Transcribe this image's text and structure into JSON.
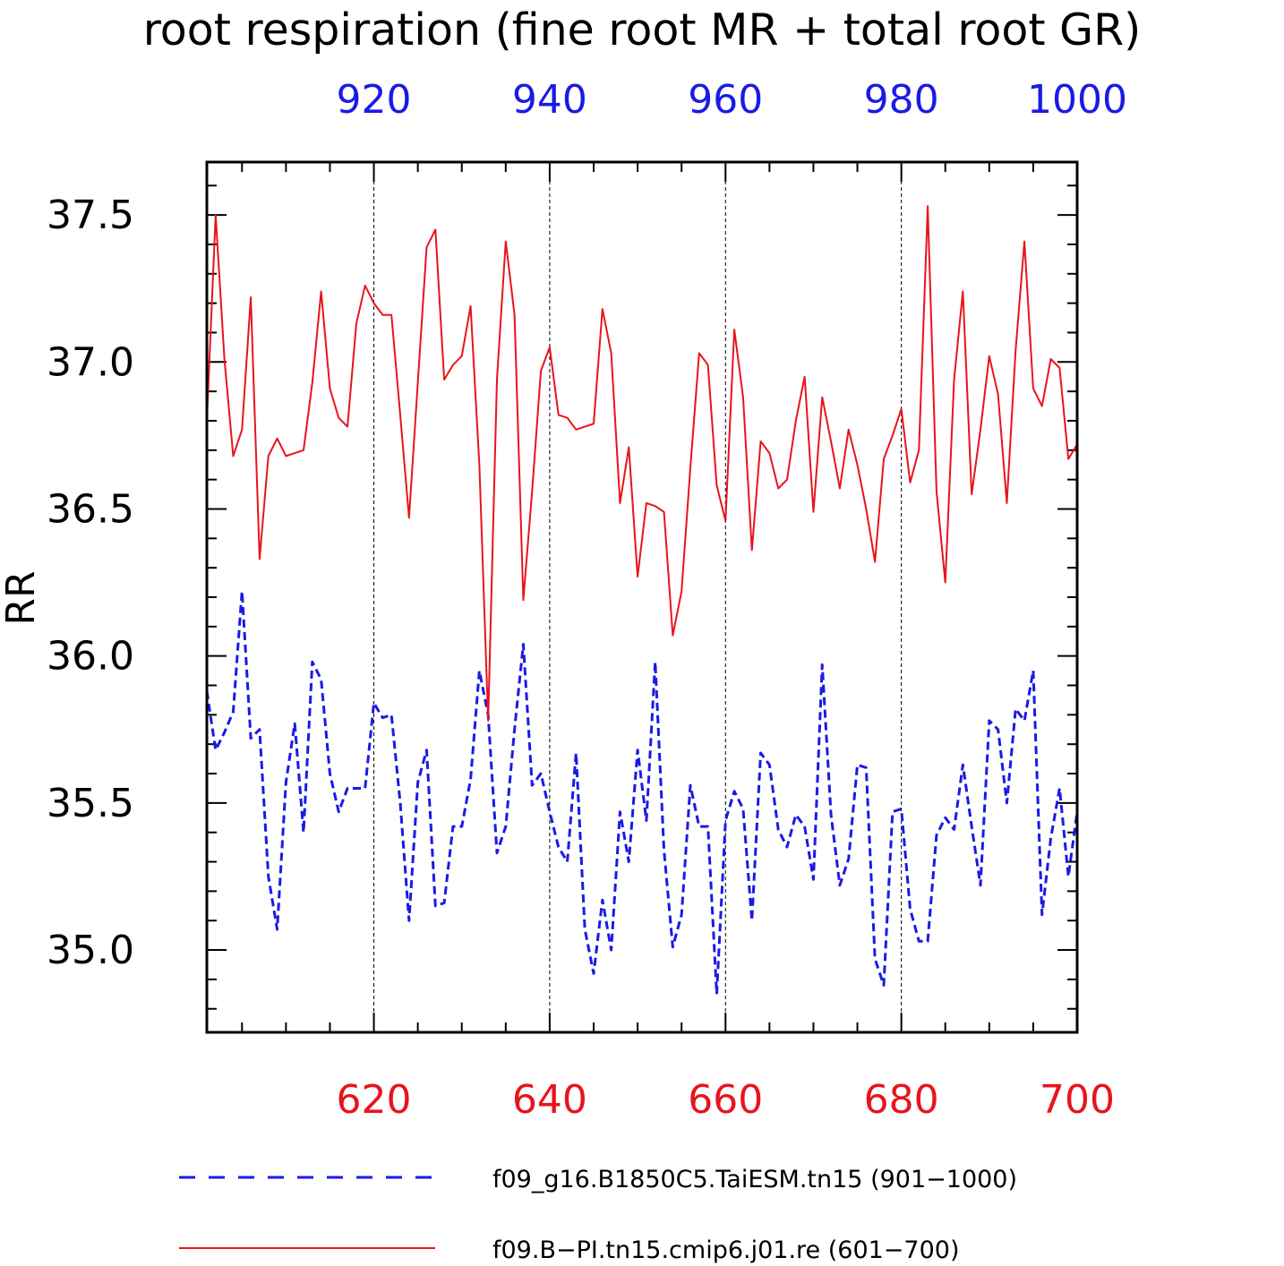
{
  "chart_data": {
    "type": "line",
    "title": "root respiration (fine root MR + total root GR)",
    "ylabel": "RR",
    "ylim": [
      34.72,
      37.68
    ],
    "yticks": [
      "35.0",
      "35.5",
      "36.0",
      "36.5",
      "37.0",
      "37.5"
    ],
    "x_bottom": {
      "range": [
        601,
        700
      ],
      "ticks": [
        "620",
        "640",
        "660",
        "680",
        "700"
      ],
      "color": "#e8141c"
    },
    "x_top": {
      "range": [
        901,
        1000
      ],
      "ticks": [
        "920",
        "940",
        "960",
        "980",
        "1000"
      ],
      "color": "#1a1ae6"
    },
    "grid": "vertical dashed lines at major x ticks",
    "series": [
      {
        "name": "f09_g16.B1850C5.TaiESM.tn15 (901−1000)",
        "axis": "top",
        "style": "dashed",
        "color": "#1a1ae6",
        "x_start": 901,
        "values": [
          35.88,
          35.68,
          35.74,
          35.81,
          36.22,
          35.72,
          35.75,
          35.25,
          35.07,
          35.57,
          35.77,
          35.4,
          35.98,
          35.92,
          35.6,
          35.47,
          35.55,
          35.55,
          35.55,
          35.84,
          35.79,
          35.8,
          35.5,
          35.1,
          35.57,
          35.68,
          35.15,
          35.16,
          35.42,
          35.42,
          35.58,
          35.95,
          35.8,
          35.33,
          35.42,
          35.75,
          36.04,
          35.56,
          35.6,
          35.47,
          35.35,
          35.3,
          35.67,
          35.07,
          34.92,
          35.17,
          35.0,
          35.47,
          35.3,
          35.68,
          35.44,
          35.98,
          35.34,
          35.01,
          35.12,
          35.56,
          35.42,
          35.42,
          34.85,
          35.44,
          35.54,
          35.48,
          35.1,
          35.67,
          35.63,
          35.41,
          35.35,
          35.46,
          35.42,
          35.24,
          35.97,
          35.46,
          35.22,
          35.31,
          35.63,
          35.62,
          34.97,
          34.88,
          35.47,
          35.48,
          35.14,
          35.03,
          35.03,
          35.39,
          35.45,
          35.41,
          35.63,
          35.42,
          35.22,
          35.78,
          35.75,
          35.5,
          35.82,
          35.78,
          35.95,
          35.12,
          35.38,
          35.55,
          35.25,
          35.47
        ]
      },
      {
        "name": "f09.B−PI.tn15.cmip6.j01.re (601−700)",
        "axis": "bottom",
        "style": "solid",
        "color": "#e8141c",
        "x_start": 601,
        "values": [
          36.8,
          37.5,
          37.01,
          36.68,
          36.77,
          37.22,
          36.33,
          36.68,
          36.74,
          36.68,
          36.69,
          36.7,
          36.93,
          37.24,
          36.91,
          36.81,
          36.78,
          37.13,
          37.26,
          37.2,
          37.16,
          37.16,
          36.82,
          36.47,
          36.93,
          37.39,
          37.45,
          36.94,
          36.99,
          37.02,
          37.19,
          36.65,
          35.78,
          36.94,
          37.41,
          37.16,
          36.19,
          36.56,
          36.97,
          37.05,
          36.82,
          36.81,
          36.77,
          36.78,
          36.79,
          37.18,
          37.03,
          36.52,
          36.71,
          36.27,
          36.52,
          36.51,
          36.49,
          36.07,
          36.22,
          36.64,
          37.03,
          36.99,
          36.58,
          36.46,
          37.11,
          36.88,
          36.36,
          36.73,
          36.69,
          36.57,
          36.6,
          36.8,
          36.95,
          36.49,
          36.88,
          36.73,
          36.57,
          36.77,
          36.65,
          36.5,
          36.32,
          36.67,
          36.75,
          36.84,
          36.59,
          36.7,
          37.53,
          36.56,
          36.25,
          36.94,
          37.24,
          36.55,
          36.77,
          37.02,
          36.89,
          36.52,
          37.04,
          37.41,
          36.91,
          36.85,
          37.01,
          36.98,
          36.67,
          36.72
        ]
      }
    ]
  }
}
